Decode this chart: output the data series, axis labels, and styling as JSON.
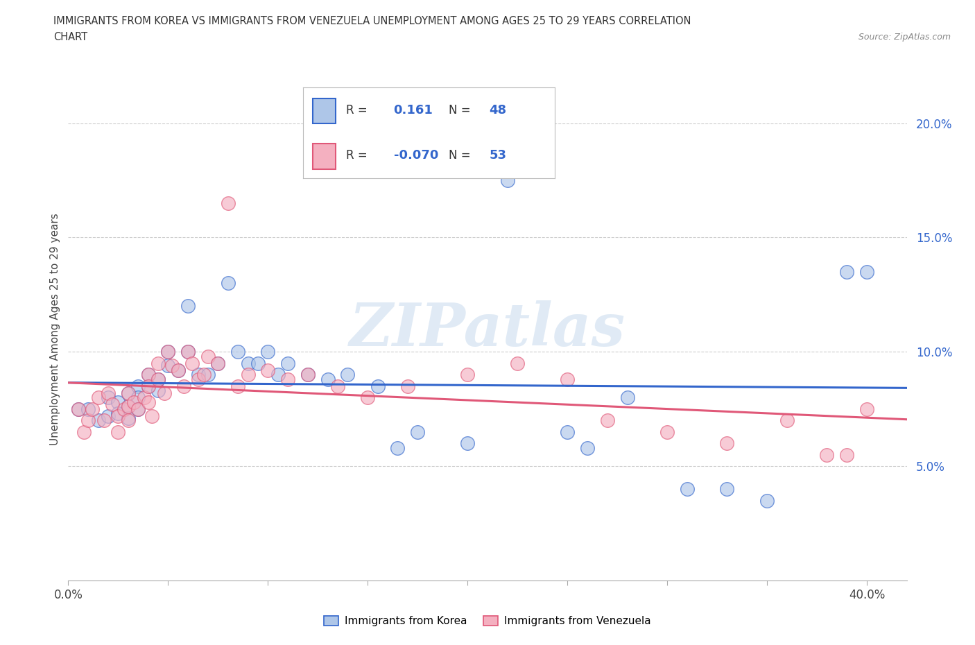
{
  "title_line1": "IMMIGRANTS FROM KOREA VS IMMIGRANTS FROM VENEZUELA UNEMPLOYMENT AMONG AGES 25 TO 29 YEARS CORRELATION",
  "title_line2": "CHART",
  "source_text": "Source: ZipAtlas.com",
  "ylabel": "Unemployment Among Ages 25 to 29 years",
  "xlim": [
    0.0,
    0.42
  ],
  "ylim": [
    0.0,
    0.22
  ],
  "xticks": [
    0.0,
    0.05,
    0.1,
    0.15,
    0.2,
    0.25,
    0.3,
    0.35,
    0.4
  ],
  "yticks": [
    0.05,
    0.1,
    0.15,
    0.2
  ],
  "korea_R": 0.161,
  "korea_N": 48,
  "venezuela_R": -0.07,
  "venezuela_N": 53,
  "korea_color": "#aec6e8",
  "venezuela_color": "#f4b0c0",
  "korea_line_color": "#3366cc",
  "venezuela_line_color": "#e05878",
  "korea_x": [
    0.005,
    0.01,
    0.015,
    0.02,
    0.02,
    0.025,
    0.025,
    0.03,
    0.03,
    0.03,
    0.035,
    0.035,
    0.035,
    0.04,
    0.04,
    0.045,
    0.045,
    0.05,
    0.05,
    0.055,
    0.06,
    0.06,
    0.065,
    0.07,
    0.075,
    0.08,
    0.085,
    0.09,
    0.095,
    0.1,
    0.105,
    0.11,
    0.12,
    0.13,
    0.14,
    0.155,
    0.165,
    0.175,
    0.2,
    0.22,
    0.25,
    0.26,
    0.28,
    0.31,
    0.33,
    0.35,
    0.39,
    0.4
  ],
  "korea_y": [
    0.075,
    0.075,
    0.07,
    0.08,
    0.072,
    0.078,
    0.073,
    0.082,
    0.076,
    0.071,
    0.085,
    0.08,
    0.075,
    0.09,
    0.085,
    0.088,
    0.083,
    0.1,
    0.094,
    0.092,
    0.12,
    0.1,
    0.09,
    0.09,
    0.095,
    0.13,
    0.1,
    0.095,
    0.095,
    0.1,
    0.09,
    0.095,
    0.09,
    0.088,
    0.09,
    0.085,
    0.058,
    0.065,
    0.06,
    0.175,
    0.065,
    0.058,
    0.08,
    0.04,
    0.04,
    0.035,
    0.135,
    0.135
  ],
  "venezuela_x": [
    0.005,
    0.008,
    0.01,
    0.012,
    0.015,
    0.018,
    0.02,
    0.022,
    0.025,
    0.025,
    0.028,
    0.03,
    0.03,
    0.03,
    0.033,
    0.035,
    0.038,
    0.04,
    0.04,
    0.04,
    0.042,
    0.045,
    0.045,
    0.048,
    0.05,
    0.052,
    0.055,
    0.058,
    0.06,
    0.062,
    0.065,
    0.068,
    0.07,
    0.075,
    0.08,
    0.085,
    0.09,
    0.1,
    0.11,
    0.12,
    0.135,
    0.15,
    0.17,
    0.2,
    0.225,
    0.25,
    0.27,
    0.3,
    0.33,
    0.36,
    0.38,
    0.39,
    0.4
  ],
  "venezuela_y": [
    0.075,
    0.065,
    0.07,
    0.075,
    0.08,
    0.07,
    0.082,
    0.077,
    0.065,
    0.072,
    0.075,
    0.082,
    0.076,
    0.07,
    0.078,
    0.075,
    0.08,
    0.09,
    0.085,
    0.078,
    0.072,
    0.095,
    0.088,
    0.082,
    0.1,
    0.094,
    0.092,
    0.085,
    0.1,
    0.095,
    0.088,
    0.09,
    0.098,
    0.095,
    0.165,
    0.085,
    0.09,
    0.092,
    0.088,
    0.09,
    0.085,
    0.08,
    0.085,
    0.09,
    0.095,
    0.088,
    0.07,
    0.065,
    0.06,
    0.07,
    0.055,
    0.055,
    0.075
  ],
  "watermark_text": "ZIPatlas",
  "legend_label_korea": "Immigrants from Korea",
  "legend_label_venezuela": "Immigrants from Venezuela"
}
